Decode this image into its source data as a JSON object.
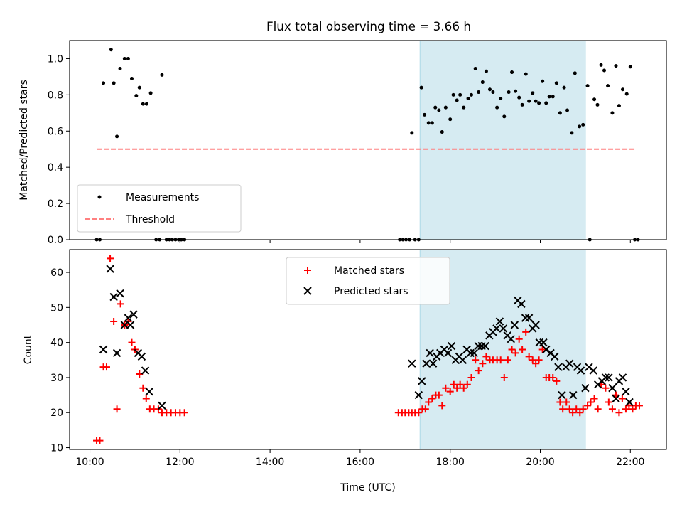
{
  "title": "Flux total observing time = 3.66 h",
  "chart_data": [
    {
      "type": "scatter",
      "panel": "top",
      "ylabel": "Matched/Predicted stars",
      "ylim": [
        0,
        1.1
      ],
      "yticks": [
        0.0,
        0.2,
        0.4,
        0.6,
        0.8,
        1.0
      ],
      "ytick_labels": [
        "0.0",
        "0.2",
        "0.4",
        "0.6",
        "0.8",
        "1.0"
      ],
      "xlim": [
        9.55,
        22.8
      ],
      "xticks": [
        10,
        12,
        14,
        16,
        18,
        20,
        22
      ],
      "highlight_span": [
        17.33,
        21.0
      ],
      "legend": {
        "placement": "lower-left",
        "entries": [
          "Measurements",
          "Threshold"
        ]
      },
      "threshold": {
        "name": "Threshold",
        "value": 0.5,
        "x_range": [
          10.15,
          22.1
        ],
        "color": "#ff8080"
      },
      "series": [
        {
          "name": "Measurements",
          "color": "#000000",
          "points": [
            [
              10.15,
              0
            ],
            [
              10.22,
              0
            ],
            [
              10.3,
              0.865
            ],
            [
              10.47,
              1.05
            ],
            [
              10.53,
              0.865
            ],
            [
              10.6,
              0.57
            ],
            [
              10.67,
              0.945
            ],
            [
              10.77,
              1.0
            ],
            [
              10.85,
              1.0
            ],
            [
              10.93,
              0.89
            ],
            [
              11.03,
              0.795
            ],
            [
              11.1,
              0.84
            ],
            [
              11.18,
              0.75
            ],
            [
              11.26,
              0.75
            ],
            [
              11.35,
              0.81
            ],
            [
              11.47,
              0
            ],
            [
              11.55,
              0
            ],
            [
              11.6,
              0.91
            ],
            [
              11.7,
              0
            ],
            [
              11.77,
              0
            ],
            [
              11.83,
              0
            ],
            [
              11.9,
              0
            ],
            [
              11.97,
              0
            ],
            [
              12.03,
              0
            ],
            [
              12.1,
              0
            ],
            [
              16.88,
              0
            ],
            [
              16.95,
              0
            ],
            [
              17.02,
              0
            ],
            [
              17.1,
              0
            ],
            [
              17.15,
              0.59
            ],
            [
              17.22,
              0
            ],
            [
              17.3,
              0
            ],
            [
              17.36,
              0.84
            ],
            [
              17.43,
              0.69
            ],
            [
              17.52,
              0.645
            ],
            [
              17.6,
              0.645
            ],
            [
              17.67,
              0.73
            ],
            [
              17.75,
              0.715
            ],
            [
              17.82,
              0.595
            ],
            [
              17.9,
              0.73
            ],
            [
              18.0,
              0.665
            ],
            [
              18.07,
              0.8
            ],
            [
              18.15,
              0.77
            ],
            [
              18.22,
              0.8
            ],
            [
              18.3,
              0.73
            ],
            [
              18.4,
              0.78
            ],
            [
              18.47,
              0.8
            ],
            [
              18.56,
              0.945
            ],
            [
              18.63,
              0.815
            ],
            [
              18.72,
              0.87
            ],
            [
              18.8,
              0.93
            ],
            [
              18.88,
              0.83
            ],
            [
              18.95,
              0.815
            ],
            [
              19.04,
              0.73
            ],
            [
              19.12,
              0.78
            ],
            [
              19.2,
              0.68
            ],
            [
              19.3,
              0.815
            ],
            [
              19.37,
              0.925
            ],
            [
              19.45,
              0.82
            ],
            [
              19.53,
              0.785
            ],
            [
              19.6,
              0.745
            ],
            [
              19.68,
              0.915
            ],
            [
              19.75,
              0.765
            ],
            [
              19.83,
              0.81
            ],
            [
              19.9,
              0.765
            ],
            [
              19.97,
              0.755
            ],
            [
              20.05,
              0.875
            ],
            [
              20.13,
              0.755
            ],
            [
              20.2,
              0.79
            ],
            [
              20.28,
              0.79
            ],
            [
              20.36,
              0.865
            ],
            [
              20.44,
              0.7
            ],
            [
              20.53,
              0.84
            ],
            [
              20.6,
              0.715
            ],
            [
              20.7,
              0.59
            ],
            [
              20.77,
              0.92
            ],
            [
              20.87,
              0.625
            ],
            [
              20.95,
              0.635
            ],
            [
              21.05,
              0.85
            ],
            [
              21.1,
              0
            ],
            [
              21.2,
              0.775
            ],
            [
              21.27,
              0.745
            ],
            [
              21.35,
              0.965
            ],
            [
              21.42,
              0.935
            ],
            [
              21.5,
              0.85
            ],
            [
              21.6,
              0.7
            ],
            [
              21.68,
              0.96
            ],
            [
              21.75,
              0.74
            ],
            [
              21.83,
              0.83
            ],
            [
              21.92,
              0.805
            ],
            [
              22.0,
              0.955
            ],
            [
              22.1,
              0
            ],
            [
              22.17,
              0
            ]
          ]
        }
      ]
    },
    {
      "type": "scatter",
      "panel": "bottom",
      "xlabel": "Time (UTC)",
      "ylabel": "Count",
      "ylim": [
        9.5,
        66.5
      ],
      "yticks": [
        10,
        20,
        30,
        40,
        50,
        60
      ],
      "ytick_labels": [
        "10",
        "20",
        "30",
        "40",
        "50",
        "60"
      ],
      "xlim": [
        9.55,
        22.8
      ],
      "xticks": [
        10,
        12,
        14,
        16,
        18,
        20,
        22
      ],
      "xtick_labels": [
        "10:00",
        "12:00",
        "14:00",
        "16:00",
        "18:00",
        "20:00",
        "22:00"
      ],
      "highlight_span": [
        17.33,
        21.0
      ],
      "legend": {
        "placement": "upper-center",
        "entries": [
          "Matched stars",
          "Predicted stars"
        ]
      },
      "series": [
        {
          "name": "Matched stars",
          "marker": "+",
          "color": "#ff0000",
          "points": [
            [
              10.15,
              12
            ],
            [
              10.22,
              12
            ],
            [
              10.3,
              33
            ],
            [
              10.37,
              33
            ],
            [
              10.45,
              64
            ],
            [
              10.53,
              46
            ],
            [
              10.6,
              21
            ],
            [
              10.68,
              51
            ],
            [
              10.77,
              45
            ],
            [
              10.85,
              46
            ],
            [
              10.93,
              40
            ],
            [
              11.0,
              38
            ],
            [
              11.1,
              31
            ],
            [
              11.18,
              27
            ],
            [
              11.25,
              24
            ],
            [
              11.33,
              21
            ],
            [
              11.42,
              21
            ],
            [
              11.52,
              21
            ],
            [
              11.6,
              20
            ],
            [
              11.7,
              20
            ],
            [
              11.8,
              20
            ],
            [
              11.9,
              20
            ],
            [
              12.0,
              20
            ],
            [
              12.1,
              20
            ],
            [
              16.85,
              20
            ],
            [
              16.93,
              20
            ],
            [
              17.0,
              20
            ],
            [
              17.08,
              20
            ],
            [
              17.15,
              20
            ],
            [
              17.22,
              20
            ],
            [
              17.3,
              20
            ],
            [
              17.38,
              21
            ],
            [
              17.45,
              21
            ],
            [
              17.52,
              23
            ],
            [
              17.6,
              24
            ],
            [
              17.68,
              25
            ],
            [
              17.75,
              25
            ],
            [
              17.82,
              22
            ],
            [
              17.9,
              27
            ],
            [
              18.0,
              26
            ],
            [
              18.08,
              28
            ],
            [
              18.15,
              27
            ],
            [
              18.22,
              28
            ],
            [
              18.3,
              27
            ],
            [
              18.38,
              28
            ],
            [
              18.47,
              30
            ],
            [
              18.56,
              35
            ],
            [
              18.63,
              32
            ],
            [
              18.72,
              34
            ],
            [
              18.8,
              36
            ],
            [
              18.88,
              35
            ],
            [
              18.95,
              35
            ],
            [
              19.04,
              35
            ],
            [
              19.12,
              35
            ],
            [
              19.2,
              30
            ],
            [
              19.28,
              35
            ],
            [
              19.37,
              38
            ],
            [
              19.45,
              37
            ],
            [
              19.53,
              41
            ],
            [
              19.6,
              38
            ],
            [
              19.68,
              43
            ],
            [
              19.75,
              36
            ],
            [
              19.83,
              35
            ],
            [
              19.9,
              34
            ],
            [
              19.97,
              35
            ],
            [
              20.05,
              38
            ],
            [
              20.13,
              30
            ],
            [
              20.2,
              30
            ],
            [
              20.28,
              30
            ],
            [
              20.36,
              29
            ],
            [
              20.44,
              23
            ],
            [
              20.5,
              21
            ],
            [
              20.58,
              23
            ],
            [
              20.65,
              21
            ],
            [
              20.72,
              20
            ],
            [
              20.8,
              21
            ],
            [
              20.88,
              20
            ],
            [
              20.95,
              21
            ],
            [
              21.05,
              22
            ],
            [
              21.12,
              23
            ],
            [
              21.2,
              24
            ],
            [
              21.28,
              21
            ],
            [
              21.35,
              28
            ],
            [
              21.45,
              27
            ],
            [
              21.52,
              23
            ],
            [
              21.6,
              21
            ],
            [
              21.68,
              25
            ],
            [
              21.75,
              20
            ],
            [
              21.82,
              24
            ],
            [
              21.9,
              21
            ],
            [
              21.97,
              22
            ],
            [
              22.05,
              21
            ],
            [
              22.12,
              22
            ],
            [
              22.2,
              22
            ]
          ]
        },
        {
          "name": "Predicted stars",
          "marker": "x",
          "color": "#000000",
          "points": [
            [
              10.3,
              38
            ],
            [
              10.45,
              61
            ],
            [
              10.53,
              53
            ],
            [
              10.6,
              37
            ],
            [
              10.67,
              54
            ],
            [
              10.77,
              45
            ],
            [
              10.85,
              47
            ],
            [
              10.9,
              45
            ],
            [
              10.97,
              48
            ],
            [
              11.07,
              37
            ],
            [
              11.15,
              36
            ],
            [
              11.23,
              32
            ],
            [
              11.32,
              26
            ],
            [
              11.6,
              22
            ],
            [
              17.15,
              34
            ],
            [
              17.3,
              25
            ],
            [
              17.37,
              29
            ],
            [
              17.47,
              34
            ],
            [
              17.55,
              37
            ],
            [
              17.62,
              34
            ],
            [
              17.7,
              36
            ],
            [
              17.78,
              37
            ],
            [
              17.87,
              38
            ],
            [
              17.95,
              37
            ],
            [
              18.03,
              39
            ],
            [
              18.12,
              35
            ],
            [
              18.2,
              36
            ],
            [
              18.28,
              35
            ],
            [
              18.37,
              38
            ],
            [
              18.45,
              37
            ],
            [
              18.53,
              37
            ],
            [
              18.62,
              39
            ],
            [
              18.7,
              39
            ],
            [
              18.78,
              39
            ],
            [
              18.87,
              42
            ],
            [
              18.95,
              43
            ],
            [
              19.03,
              44
            ],
            [
              19.1,
              46
            ],
            [
              19.18,
              44
            ],
            [
              19.27,
              42
            ],
            [
              19.35,
              41
            ],
            [
              19.43,
              45
            ],
            [
              19.5,
              52
            ],
            [
              19.58,
              51
            ],
            [
              19.67,
              47
            ],
            [
              19.75,
              47
            ],
            [
              19.83,
              44
            ],
            [
              19.9,
              45
            ],
            [
              19.98,
              40
            ],
            [
              20.07,
              40
            ],
            [
              20.13,
              38
            ],
            [
              20.23,
              37
            ],
            [
              20.32,
              36
            ],
            [
              20.4,
              33
            ],
            [
              20.48,
              25
            ],
            [
              20.57,
              33
            ],
            [
              20.65,
              34
            ],
            [
              20.73,
              25
            ],
            [
              20.82,
              33
            ],
            [
              20.9,
              32
            ],
            [
              21.0,
              27
            ],
            [
              21.08,
              33
            ],
            [
              21.18,
              32
            ],
            [
              21.28,
              28
            ],
            [
              21.37,
              29
            ],
            [
              21.45,
              30
            ],
            [
              21.52,
              30
            ],
            [
              21.6,
              27
            ],
            [
              21.68,
              24
            ],
            [
              21.75,
              29
            ],
            [
              21.83,
              30
            ],
            [
              21.9,
              26
            ],
            [
              21.98,
              23
            ]
          ]
        }
      ]
    }
  ]
}
